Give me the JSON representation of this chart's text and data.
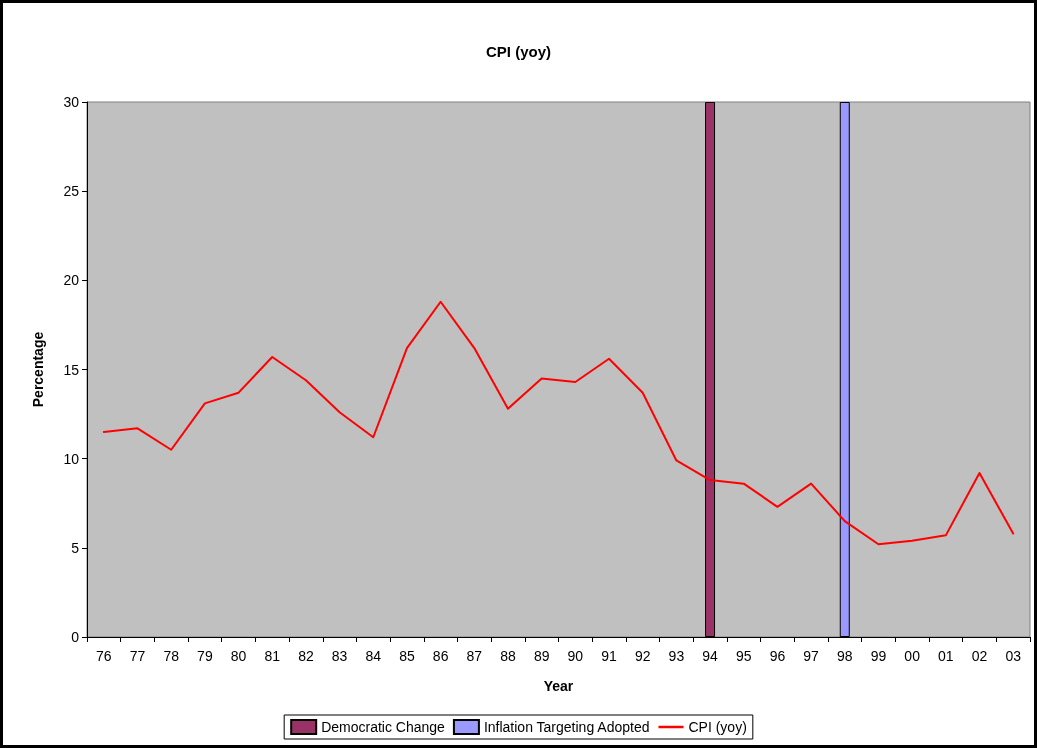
{
  "chart_data": {
    "type": "line",
    "title": "CPI (yoy)",
    "xlabel": "Year",
    "ylabel": "Percentage",
    "categories": [
      "76",
      "77",
      "78",
      "79",
      "80",
      "81",
      "82",
      "83",
      "84",
      "85",
      "86",
      "87",
      "88",
      "89",
      "90",
      "91",
      "92",
      "93",
      "94",
      "95",
      "96",
      "97",
      "98",
      "99",
      "00",
      "01",
      "02",
      "03"
    ],
    "series": [
      {
        "name": "Democratic Change",
        "type": "bar",
        "color": "#993366",
        "values": [
          null,
          null,
          null,
          null,
          null,
          null,
          null,
          null,
          null,
          null,
          null,
          null,
          null,
          null,
          null,
          null,
          null,
          null,
          30,
          null,
          null,
          null,
          null,
          null,
          null,
          null,
          null,
          null
        ]
      },
      {
        "name": "Inflation Targeting Adopted",
        "type": "bar",
        "color": "#9999ff",
        "values": [
          null,
          null,
          null,
          null,
          null,
          null,
          null,
          null,
          null,
          null,
          null,
          null,
          null,
          null,
          null,
          null,
          null,
          null,
          null,
          null,
          null,
          null,
          30,
          null,
          null,
          null,
          null,
          null
        ]
      },
      {
        "name": "CPI (yoy)",
        "color": "#ff0000",
        "values": [
          11.5,
          11.7,
          10.5,
          13.1,
          13.7,
          15.7,
          14.4,
          12.6,
          11.2,
          16.2,
          18.8,
          16.2,
          12.8,
          14.5,
          14.3,
          15.6,
          13.7,
          9.9,
          8.8,
          8.6,
          7.3,
          8.6,
          6.5,
          5.2,
          5.4,
          5.7,
          9.2,
          5.8
        ]
      }
    ],
    "ylim": [
      0,
      30
    ],
    "yticks": [
      0,
      5,
      10,
      15,
      20,
      25,
      30
    ],
    "grid": false,
    "legend": "bottom",
    "marker": "none",
    "line_style": "solid"
  }
}
